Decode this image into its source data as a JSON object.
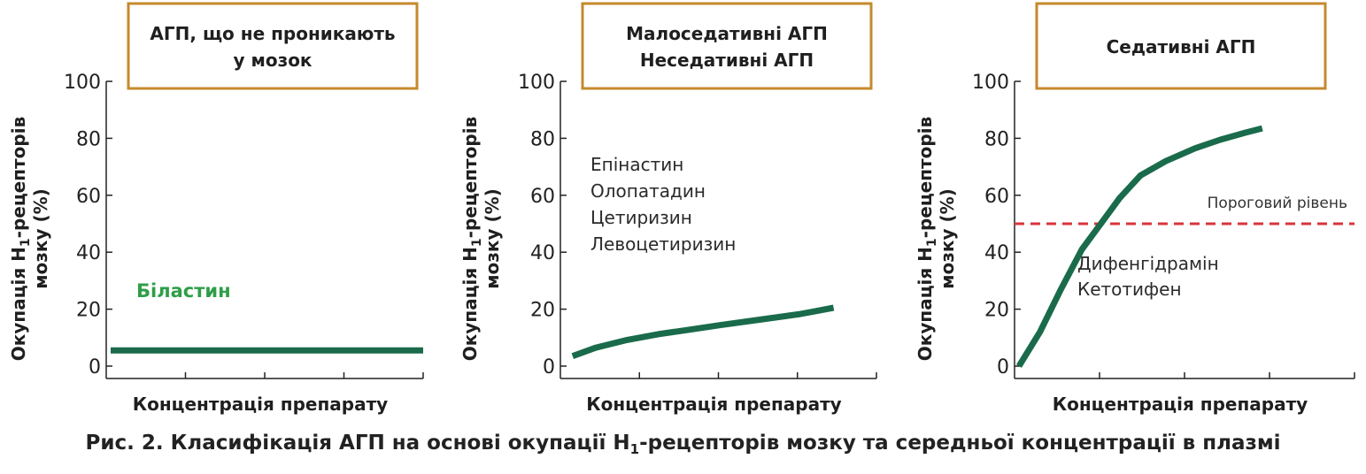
{
  "caption": {
    "prefix": "Рис. 2. Класифікація АГП на основі окупації Н",
    "subscript": "1",
    "suffix": "-рецепторів мозку та середньої концентрації в плазмі"
  },
  "colors": {
    "curve": "#1a6b4b",
    "label_green": "#2e9e48",
    "threshold": "#d9343b",
    "box_border": "#c48a2c",
    "axis": "#222222"
  },
  "chart_data": [
    {
      "type": "line",
      "header": [
        "АГП, що не проникають",
        "у мозок"
      ],
      "ylabel": {
        "main": "Окупація Н",
        "sub": "1",
        "rest": "-рецепторів",
        "line2": "мозку (%)"
      },
      "xlabel": "Концентрація препарату",
      "ylim": [
        0,
        100
      ],
      "yticks": [
        "0",
        "20",
        "40",
        "60",
        "80",
        "100"
      ],
      "x_categories": 5,
      "series": [
        {
          "points": [
            [
              0,
              5.5
            ],
            [
              1,
              5.5
            ],
            [
              2,
              5.5
            ],
            [
              3,
              5.5
            ],
            [
              4,
              5.5
            ]
          ]
        }
      ],
      "annotations": [
        {
          "text": "Біластин",
          "style": "green-bold"
        }
      ]
    },
    {
      "type": "line",
      "header": [
        "Малоседативні АГП",
        "Неседативні АГП"
      ],
      "ylabel": {
        "main": "Окупація Н",
        "sub": "1",
        "rest": "-рецепторів",
        "line2": "мозку (%)"
      },
      "xlabel": "Концентрація препарату",
      "ylim": [
        0,
        100
      ],
      "yticks": [
        "0",
        "20",
        "40",
        "60",
        "80",
        "100"
      ],
      "x_categories": 5,
      "series": [
        {
          "points": [
            [
              0.1,
              3.5
            ],
            [
              0.4,
              6.5
            ],
            [
              0.8,
              9.2
            ],
            [
              1.2,
              11.2
            ],
            [
              1.6,
              12.8
            ],
            [
              2.0,
              14.4
            ],
            [
              2.5,
              16.3
            ],
            [
              3.0,
              18.2
            ],
            [
              3.2,
              19.2
            ],
            [
              3.45,
              20.5
            ]
          ]
        }
      ],
      "annotations": [
        {
          "text": "Епінастин",
          "style": "plain"
        },
        {
          "text": "Олопатадин",
          "style": "plain"
        },
        {
          "text": "Цетиризин",
          "style": "plain"
        },
        {
          "text": "Левоцетиризин",
          "style": "plain"
        }
      ]
    },
    {
      "type": "line",
      "header": [
        "Седативні АГП"
      ],
      "ylabel": {
        "main": "Окупація Н",
        "sub": "1",
        "rest": "-рецепторів",
        "line2": "мозку (%)"
      },
      "xlabel": "Концентрація препарату",
      "ylim": [
        0,
        100
      ],
      "yticks": [
        "0",
        "20",
        "40",
        "60",
        "80",
        "100"
      ],
      "x_categories": 5,
      "series": [
        {
          "points": [
            [
              0,
              0
            ],
            [
              0.25,
              12
            ],
            [
              0.5,
              27
            ],
            [
              0.75,
              41
            ],
            [
              1.0,
              51
            ],
            [
              1.2,
              59
            ],
            [
              1.45,
              67
            ],
            [
              1.75,
              72
            ],
            [
              2.1,
              76.5
            ],
            [
              2.4,
              79.5
            ],
            [
              2.7,
              82
            ],
            [
              2.9,
              83.5
            ]
          ]
        }
      ],
      "threshold": {
        "value": 50,
        "label": "Пороговий рівень"
      },
      "annotations": [
        {
          "text": "Дифенгідрамін",
          "style": "plain"
        },
        {
          "text": "Кетотифен",
          "style": "plain"
        }
      ]
    }
  ]
}
